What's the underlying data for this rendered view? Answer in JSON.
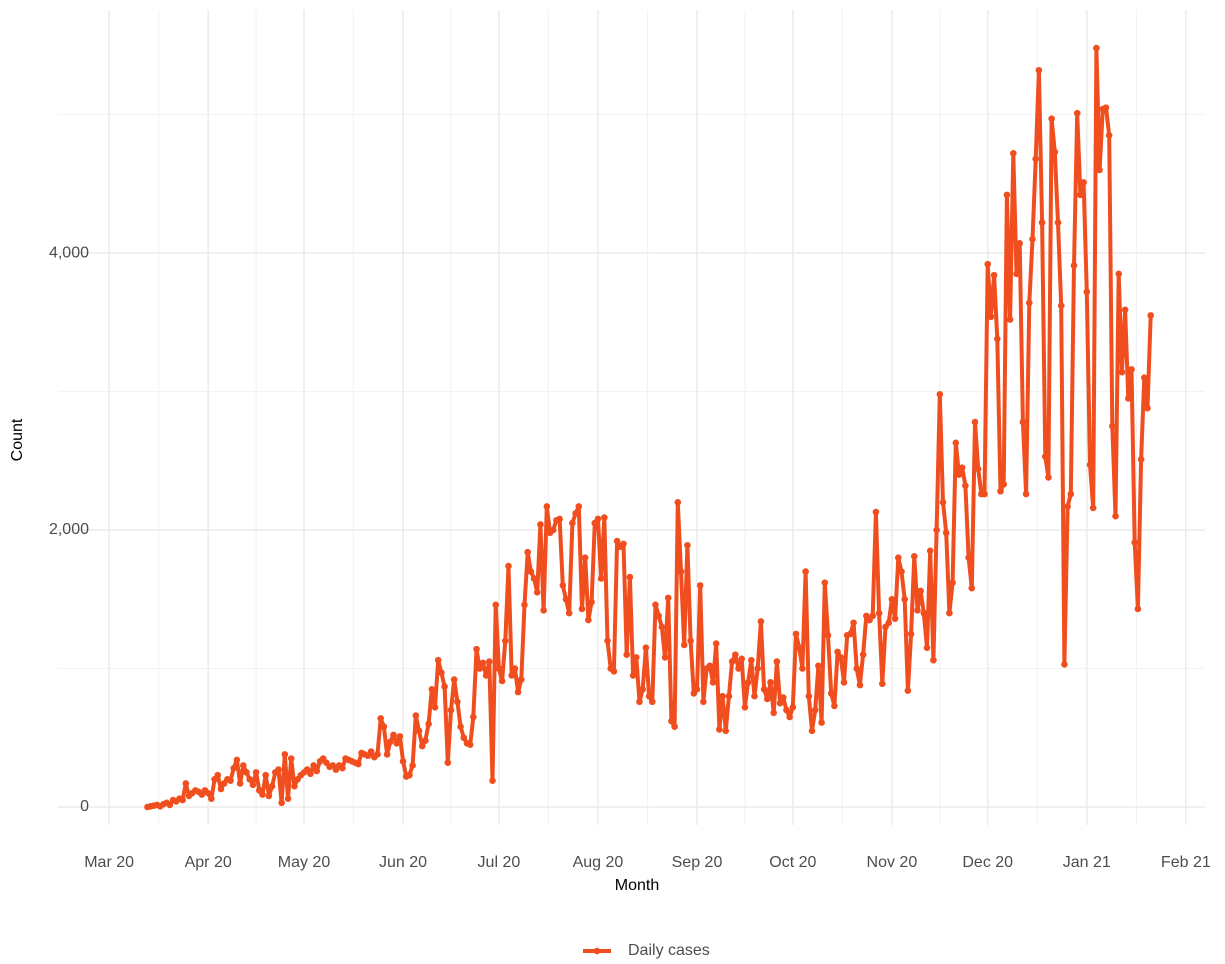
{
  "chart_data": {
    "type": "line",
    "x_label": "Month",
    "y_label": "Count",
    "series": [
      {
        "name": "Daily cases",
        "color": "#f04e1e",
        "values": [
          0,
          5,
          10,
          15,
          5,
          20,
          30,
          15,
          50,
          40,
          60,
          50,
          170,
          80,
          100,
          120,
          110,
          90,
          120,
          100,
          60,
          200,
          230,
          130,
          170,
          200,
          190,
          280,
          340,
          170,
          300,
          250,
          200,
          160,
          250,
          120,
          90,
          230,
          80,
          150,
          250,
          270,
          30,
          380,
          60,
          350,
          150,
          200,
          230,
          250,
          270,
          240,
          300,
          260,
          330,
          350,
          320,
          290,
          300,
          270,
          300,
          280,
          350,
          340,
          330,
          320,
          310,
          390,
          380,
          370,
          400,
          360,
          380,
          640,
          580,
          380,
          470,
          520,
          460,
          510,
          330,
          220,
          230,
          300,
          660,
          550,
          440,
          480,
          600,
          850,
          720,
          1060,
          970,
          870,
          320,
          700,
          920,
          760,
          580,
          500,
          460,
          450,
          650,
          1140,
          1000,
          1040,
          950,
          1050,
          190,
          1460,
          1000,
          910,
          1200,
          1740,
          950,
          1000,
          830,
          920,
          1460,
          1840,
          1700,
          1650,
          1550,
          2040,
          1420,
          2170,
          1980,
          2000,
          2070,
          2080,
          1600,
          1500,
          1400,
          2050,
          2120,
          2170,
          1430,
          1800,
          1350,
          1480,
          2050,
          2080,
          1650,
          2090,
          1200,
          1000,
          980,
          1920,
          1880,
          1900,
          1100,
          1660,
          950,
          1080,
          760,
          850,
          1150,
          800,
          760,
          1460,
          1380,
          1300,
          1080,
          1510,
          620,
          580,
          2200,
          1700,
          1170,
          1890,
          1200,
          820,
          850,
          1600,
          760,
          1000,
          1020,
          900,
          1180,
          560,
          800,
          550,
          800,
          1050,
          1100,
          1000,
          1070,
          720,
          900,
          1060,
          800,
          1000,
          1340,
          850,
          780,
          900,
          680,
          1050,
          750,
          790,
          700,
          650,
          720,
          1250,
          1150,
          1000,
          1700,
          800,
          550,
          700,
          1020,
          610,
          1620,
          1240,
          820,
          730,
          1120,
          1080,
          900,
          1240,
          1250,
          1330,
          1000,
          880,
          1100,
          1380,
          1350,
          1380,
          2130,
          1400,
          890,
          1300,
          1330,
          1500,
          1360,
          1800,
          1700,
          1500,
          840,
          1250,
          1810,
          1420,
          1560,
          1400,
          1150,
          1850,
          1060,
          2000,
          2980,
          2200,
          1980,
          1400,
          1620,
          2630,
          2400,
          2450,
          2320,
          1800,
          1580,
          2780,
          2440,
          2260,
          2260,
          3920,
          3540,
          3840,
          3380,
          2280,
          2330,
          4420,
          3520,
          4720,
          3850,
          4070,
          2780,
          2260,
          3640,
          4100,
          4680,
          5320,
          4220,
          2530,
          2380,
          4970,
          4730,
          4220,
          3620,
          1030,
          2170,
          2260,
          3910,
          5010,
          4420,
          4510,
          3720,
          2470,
          2160,
          5480,
          4600,
          5040,
          5050,
          4850,
          2750,
          2100,
          3850,
          3140,
          3590,
          2950,
          3160,
          1910,
          1430,
          2510,
          3100,
          2880,
          3550
        ]
      }
    ],
    "xlim": [
      -28,
      331
    ],
    "xticks": [
      {
        "value": -12,
        "label": "Mar 20"
      },
      {
        "value": 19,
        "label": "Apr 20"
      },
      {
        "value": 49,
        "label": "May 20"
      },
      {
        "value": 80,
        "label": "Jun 20"
      },
      {
        "value": 110,
        "label": "Jul 20"
      },
      {
        "value": 141,
        "label": "Aug 20"
      },
      {
        "value": 172,
        "label": "Sep 20"
      },
      {
        "value": 202,
        "label": "Oct 20"
      },
      {
        "value": 233,
        "label": "Nov 20"
      },
      {
        "value": 263,
        "label": "Dec 20"
      },
      {
        "value": 294,
        "label": "Jan 21"
      },
      {
        "value": 325,
        "label": "Feb 21"
      }
    ],
    "ylim": [
      -130,
      5755
    ],
    "yticks": [
      0,
      {
        "value": 2000,
        "label": "2,000"
      },
      {
        "value": 4000,
        "label": "4,000"
      }
    ],
    "yminor": [
      1000,
      3000,
      5000
    ],
    "grid": true,
    "legend": "bottom"
  }
}
